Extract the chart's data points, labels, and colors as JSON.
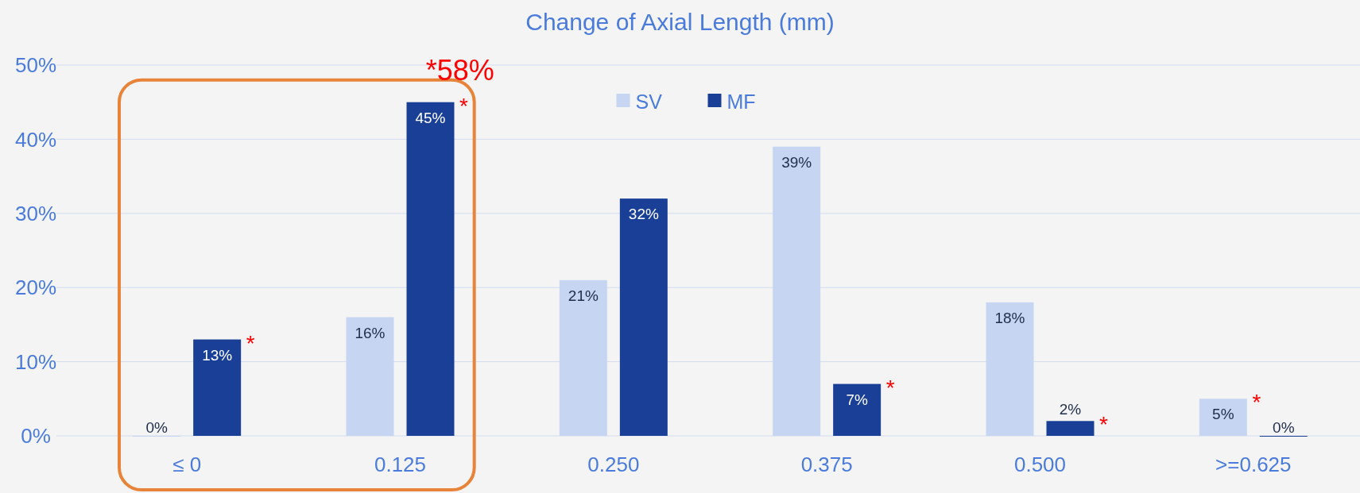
{
  "chart_data": {
    "type": "bar",
    "title": "Change of Axial Length (mm)",
    "categories": [
      "≤ 0",
      "0.125",
      "0.250",
      "0.375",
      "0.500",
      ">=0.625"
    ],
    "series": [
      {
        "name": "SV",
        "color": "#c5d5f2",
        "values": [
          0,
          16,
          21,
          39,
          18,
          5
        ],
        "value_labels": [
          "0%",
          "16%",
          "21%",
          "39%",
          "18%",
          "5%"
        ]
      },
      {
        "name": "MF",
        "color": "#1a3f96",
        "values": [
          13,
          45,
          32,
          7,
          2,
          0
        ],
        "value_labels": [
          "13%",
          "45%",
          "32%",
          "7%",
          "2%",
          "0%"
        ]
      }
    ],
    "ylim": [
      0,
      50
    ],
    "yticks": [
      {
        "value": 0,
        "label": "0%"
      },
      {
        "value": 10,
        "label": "10%"
      },
      {
        "value": 20,
        "label": "20%"
      },
      {
        "value": 30,
        "label": "30%"
      },
      {
        "value": 40,
        "label": "40%"
      },
      {
        "value": 50,
        "label": "50%"
      }
    ],
    "grid": "y",
    "legend": "top",
    "annotations": [
      "*58%",
      "*",
      "*",
      "*",
      "*",
      "*"
    ]
  }
}
